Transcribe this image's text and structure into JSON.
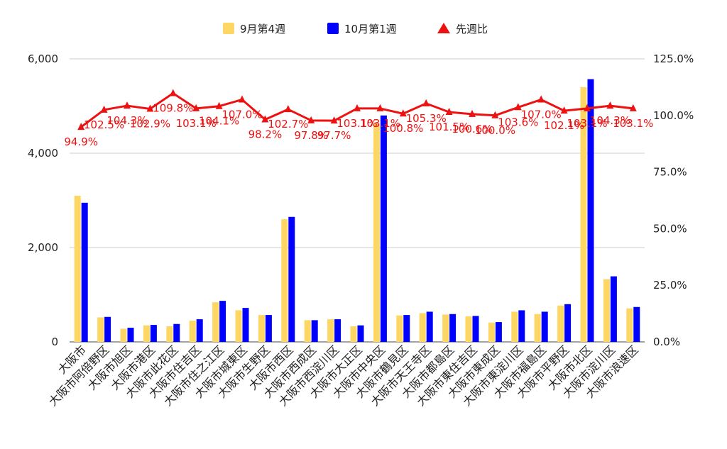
{
  "chart_data": {
    "type": "bar",
    "categories": [
      "大阪市",
      "大阪市阿倍野区",
      "大阪市旭区",
      "大阪市港区",
      "大阪市此花区",
      "大阪市住吉区",
      "大阪市住之江区",
      "大阪市城東区",
      "大阪市生野区",
      "大阪市西区",
      "大阪市西成区",
      "大阪市西淀川区",
      "大阪市大正区",
      "大阪市中央区",
      "大阪市鶴見区",
      "大阪市天王寺区",
      "大阪市都島区",
      "大阪市東住吉区",
      "大阪市東成区",
      "大阪市東淀川区",
      "大阪市福島区",
      "大阪市平野区",
      "大阪市北区",
      "大阪市淀川区",
      "大阪市浪速区"
    ],
    "series": [
      {
        "name": "9月第4週",
        "axis": "left",
        "color": "#fdd663",
        "values": [
          3100,
          520,
          280,
          350,
          330,
          450,
          840,
          670,
          570,
          2600,
          460,
          480,
          330,
          4630,
          560,
          610,
          580,
          540,
          410,
          640,
          590,
          770,
          5400,
          1330,
          710
        ]
      },
      {
        "name": "10月第1週",
        "axis": "left",
        "color": "#0000ff",
        "values": [
          2950,
          530,
          300,
          360,
          380,
          480,
          870,
          720,
          570,
          2650,
          460,
          480,
          350,
          4800,
          570,
          640,
          590,
          550,
          420,
          670,
          640,
          800,
          5570,
          1390,
          740
        ]
      },
      {
        "name": "先週比",
        "axis": "right",
        "type": "line",
        "color": "#ee1111",
        "values": [
          94.9,
          102.5,
          104.3,
          102.9,
          109.8,
          103.1,
          104.1,
          107.0,
          98.2,
          102.7,
          97.8,
          97.7,
          103.1,
          103.1,
          100.8,
          105.3,
          101.5,
          100.6,
          100.0,
          103.6,
          107.0,
          102.1,
          103.1,
          104.3,
          103.1
        ],
        "labels": [
          "94.9%",
          "102.5%",
          "104.3%",
          "102.9%",
          "109.8%",
          "103.1%",
          "104.1%",
          "107.0%",
          "98.2%",
          "102.7%",
          "97.8%",
          "97.7%",
          "103.1%",
          "103.1%",
          "100.8%",
          "105.3%",
          "101.5%",
          "100.6%",
          "100.0%",
          "103.6%",
          "107.0%",
          "102.1%",
          "103.1%",
          "104.3%",
          "103.1%"
        ]
      }
    ],
    "left_axis": {
      "ylim": [
        0,
        6000
      ],
      "ticks": [
        "0",
        "2,000",
        "4,000",
        "6,000"
      ],
      "tick_values": [
        0,
        2000,
        4000,
        6000
      ]
    },
    "right_axis": {
      "ylim": [
        0,
        125
      ],
      "ticks": [
        "0.0%",
        "25.0%",
        "50.0%",
        "75.0%",
        "100.0%",
        "125.0%"
      ],
      "tick_values": [
        0,
        25,
        50,
        75,
        100,
        125
      ]
    },
    "grid": true,
    "legend": "top-center"
  }
}
